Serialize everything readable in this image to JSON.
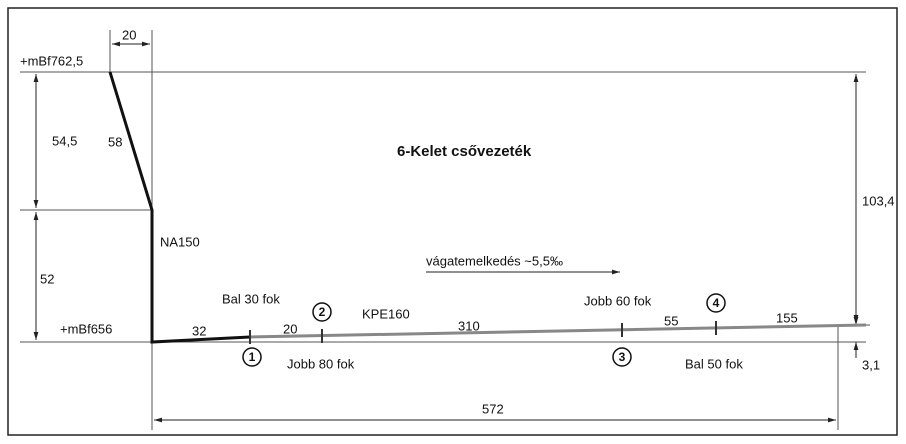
{
  "title": "6-Kelet csővezeték",
  "elevations": {
    "top": "+mBf762,5",
    "bottom": "+mBf656"
  },
  "dimensions": {
    "top_offset": "20",
    "upper_height": "54,5",
    "lower_height": "52",
    "total_height": "103,4",
    "small_height": "3,1",
    "total_length": "572"
  },
  "segments": {
    "shaft": "58",
    "first": "32",
    "second": "20",
    "third": "310",
    "fourth": "55",
    "fifth": "155"
  },
  "pipes": {
    "vertical": "NA150",
    "horizontal": "KPE160"
  },
  "slope": "vágatemelkedés ~5,5‰",
  "markers": [
    {
      "number": "1",
      "label": "Bal 30 fok"
    },
    {
      "number": "2",
      "label": "Jobb 80 fok"
    },
    {
      "number": "3",
      "label": "Jobb 60 fok"
    },
    {
      "number": "4",
      "label": "Bal 50 fok"
    }
  ]
}
